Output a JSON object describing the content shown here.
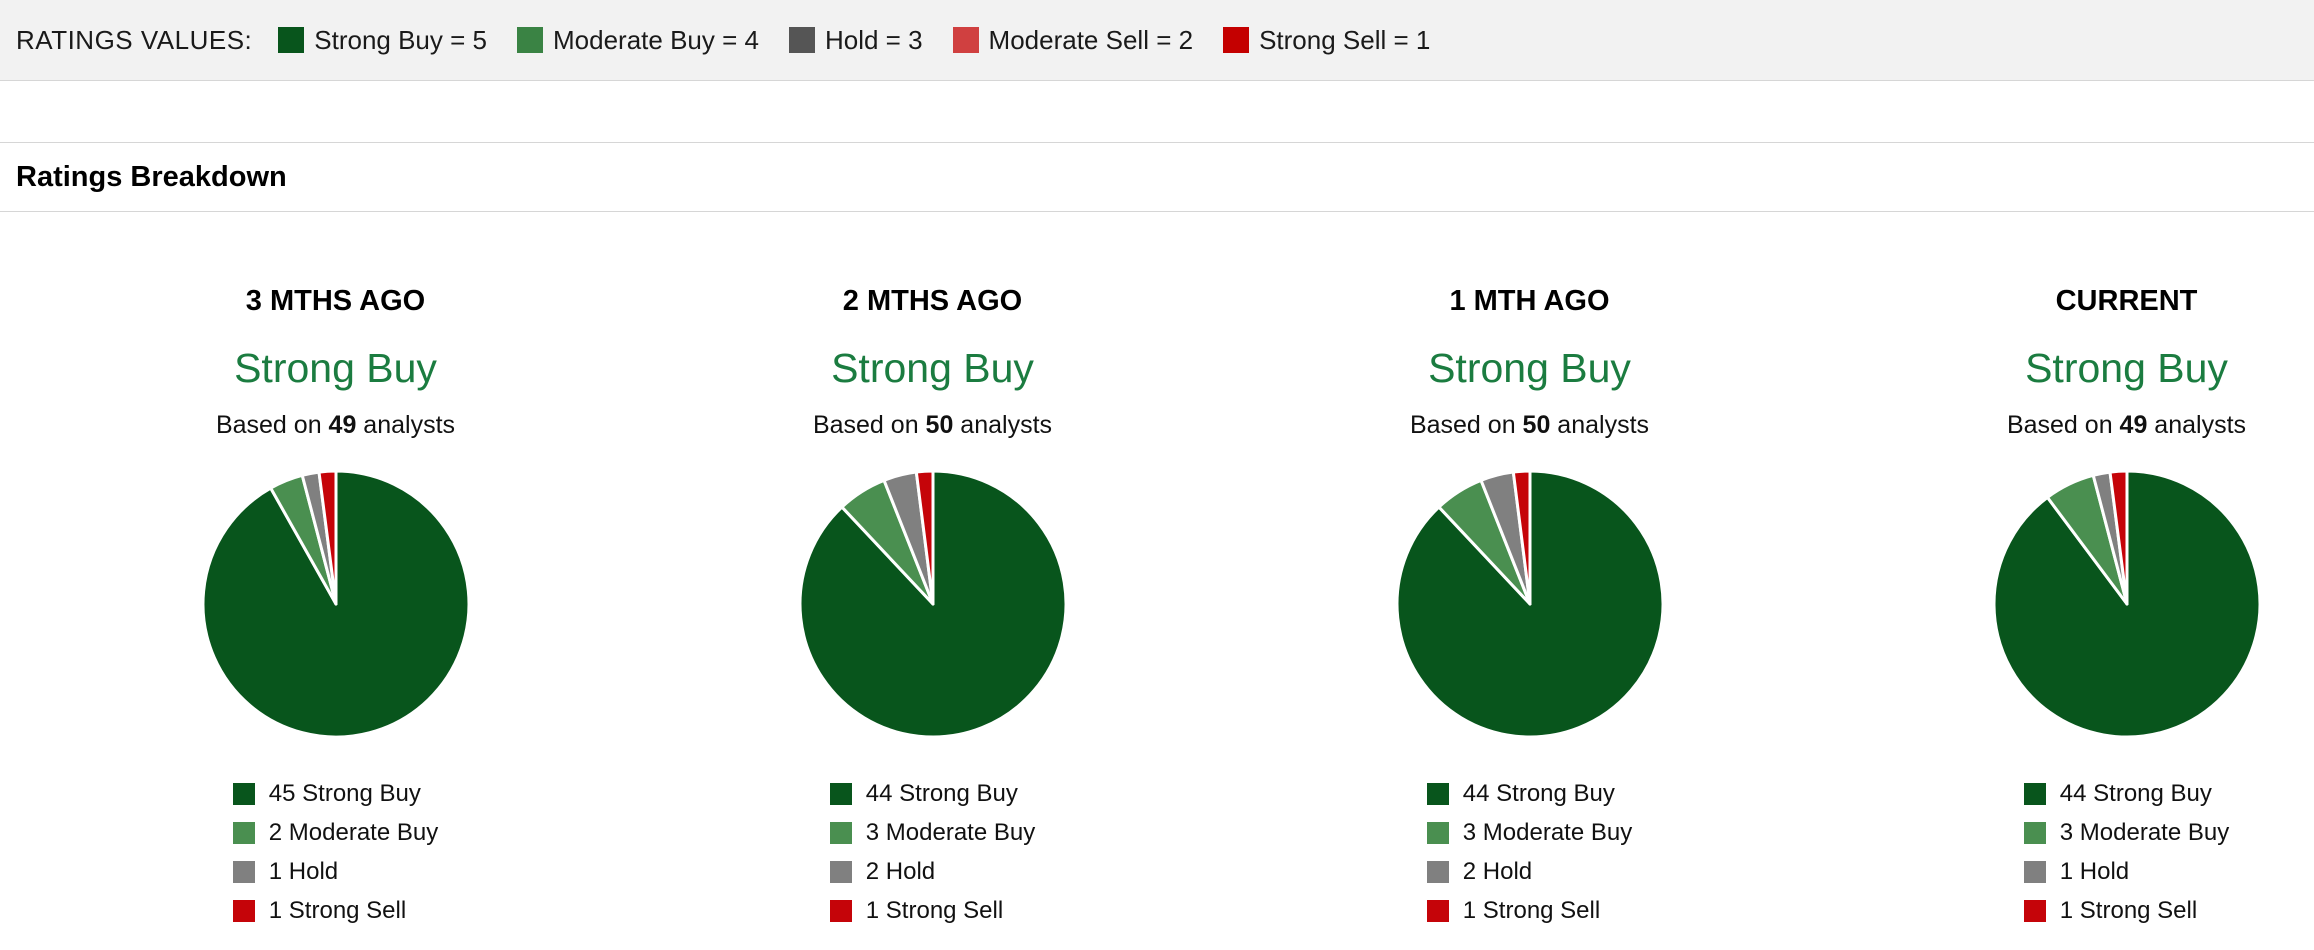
{
  "colors": {
    "topbar_background": "#f2f2f2",
    "divider": "#d6d6d6",
    "consensus_green": "#1b7c40",
    "pie_slice_border": "#ffffff"
  },
  "ratings_values_bar": {
    "title": "RATINGS VALUES:",
    "items": [
      {
        "label": "Strong Buy = 5",
        "color": "#08551c"
      },
      {
        "label": "Moderate Buy = 4",
        "color": "#3a8344"
      },
      {
        "label": "Hold = 3",
        "color": "#555555"
      },
      {
        "label": "Moderate Sell = 2",
        "color": "#d04040"
      },
      {
        "label": "Strong Sell = 1",
        "color": "#c40000"
      }
    ]
  },
  "section": {
    "title": "Ratings Breakdown"
  },
  "chart_data": [
    {
      "type": "pie",
      "title": "3 MTHS AGO",
      "consensus": "Strong Buy",
      "analysts_prefix": "Based on",
      "analysts_count": "49",
      "analysts_suffix": "analysts",
      "slices": [
        {
          "label": "45 Strong Buy",
          "value": 45,
          "color": "#08551c"
        },
        {
          "label": "2 Moderate Buy",
          "value": 2,
          "color": "#4a8f50"
        },
        {
          "label": "1 Hold",
          "value": 1,
          "color": "#808080"
        },
        {
          "label": "1 Strong Sell",
          "value": 1,
          "color": "#c50409"
        }
      ]
    },
    {
      "type": "pie",
      "title": "2 MTHS AGO",
      "consensus": "Strong Buy",
      "analysts_prefix": "Based on",
      "analysts_count": "50",
      "analysts_suffix": "analysts",
      "slices": [
        {
          "label": "44 Strong Buy",
          "value": 44,
          "color": "#08551c"
        },
        {
          "label": "3 Moderate Buy",
          "value": 3,
          "color": "#4a8f50"
        },
        {
          "label": "2 Hold",
          "value": 2,
          "color": "#808080"
        },
        {
          "label": "1 Strong Sell",
          "value": 1,
          "color": "#c50409"
        }
      ]
    },
    {
      "type": "pie",
      "title": "1 MTH AGO",
      "consensus": "Strong Buy",
      "analysts_prefix": "Based on",
      "analysts_count": "50",
      "analysts_suffix": "analysts",
      "slices": [
        {
          "label": "44 Strong Buy",
          "value": 44,
          "color": "#08551c"
        },
        {
          "label": "3 Moderate Buy",
          "value": 3,
          "color": "#4a8f50"
        },
        {
          "label": "2 Hold",
          "value": 2,
          "color": "#808080"
        },
        {
          "label": "1 Strong Sell",
          "value": 1,
          "color": "#c50409"
        }
      ]
    },
    {
      "type": "pie",
      "title": "CURRENT",
      "consensus": "Strong Buy",
      "analysts_prefix": "Based on",
      "analysts_count": "49",
      "analysts_suffix": "analysts",
      "slices": [
        {
          "label": "44 Strong Buy",
          "value": 44,
          "color": "#08551c"
        },
        {
          "label": "3 Moderate Buy",
          "value": 3,
          "color": "#4a8f50"
        },
        {
          "label": "1 Hold",
          "value": 1,
          "color": "#808080"
        },
        {
          "label": "1 Strong Sell",
          "value": 1,
          "color": "#c50409"
        }
      ]
    }
  ]
}
